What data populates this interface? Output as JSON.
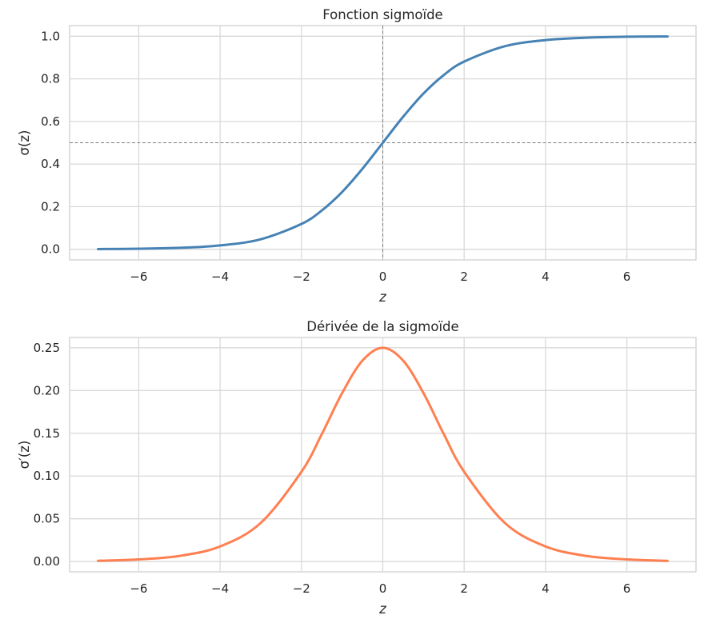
{
  "chart_data": [
    {
      "type": "line",
      "title": "Fonction sigmoïde",
      "xlabel": "z",
      "ylabel": "σ(z)",
      "xlim": [
        -7.7,
        7.7
      ],
      "ylim": [
        -0.05,
        1.05
      ],
      "xticks": [
        -6,
        -4,
        -2,
        0,
        2,
        4,
        6
      ],
      "xtick_labels": [
        "−6",
        "−4",
        "−2",
        "0",
        "2",
        "4",
        "6"
      ],
      "yticks": [
        0.0,
        0.2,
        0.4,
        0.6,
        0.8,
        1.0
      ],
      "ytick_labels": [
        "0.0",
        "0.2",
        "0.4",
        "0.6",
        "0.8",
        "1.0"
      ],
      "grid": true,
      "reference_lines": [
        {
          "orientation": "horizontal",
          "value": 0.5,
          "style": "dashed",
          "color": "#808080"
        },
        {
          "orientation": "vertical",
          "value": 0,
          "style": "dashed",
          "color": "#808080"
        }
      ],
      "series": [
        {
          "color": "#4682B4",
          "x": [
            -7,
            -6,
            -5,
            -4,
            -3,
            -2,
            -1.5,
            -1,
            -0.5,
            0,
            0.5,
            1,
            1.5,
            2,
            3,
            4,
            5,
            6,
            7
          ],
          "y": [
            0.0009,
            0.0025,
            0.0067,
            0.018,
            0.047,
            0.119,
            0.182,
            0.269,
            0.378,
            0.5,
            0.622,
            0.731,
            0.818,
            0.881,
            0.953,
            0.982,
            0.993,
            0.998,
            0.999
          ]
        }
      ]
    },
    {
      "type": "line",
      "title": "Dérivée de la sigmoïde",
      "xlabel": "z",
      "ylabel": "σ′(z)",
      "xlim": [
        -7.7,
        7.7
      ],
      "ylim": [
        -0.012,
        0.262
      ],
      "xticks": [
        -6,
        -4,
        -2,
        0,
        2,
        4,
        6
      ],
      "xtick_labels": [
        "−6",
        "−4",
        "−2",
        "0",
        "2",
        "4",
        "6"
      ],
      "yticks": [
        0.0,
        0.05,
        0.1,
        0.15,
        0.2,
        0.25
      ],
      "ytick_labels": [
        "0.00",
        "0.05",
        "0.10",
        "0.15",
        "0.20",
        "0.25"
      ],
      "grid": true,
      "series": [
        {
          "color": "#FF7F50",
          "x": [
            -7,
            -6,
            -5,
            -4,
            -3,
            -2,
            -1.5,
            -1,
            -0.5,
            0,
            0.5,
            1,
            1.5,
            2,
            3,
            4,
            5,
            6,
            7
          ],
          "y": [
            0.0009,
            0.0025,
            0.0066,
            0.0177,
            0.0452,
            0.105,
            0.149,
            0.197,
            0.235,
            0.25,
            0.235,
            0.197,
            0.149,
            0.105,
            0.0452,
            0.0177,
            0.0066,
            0.0025,
            0.0009
          ]
        }
      ]
    }
  ]
}
